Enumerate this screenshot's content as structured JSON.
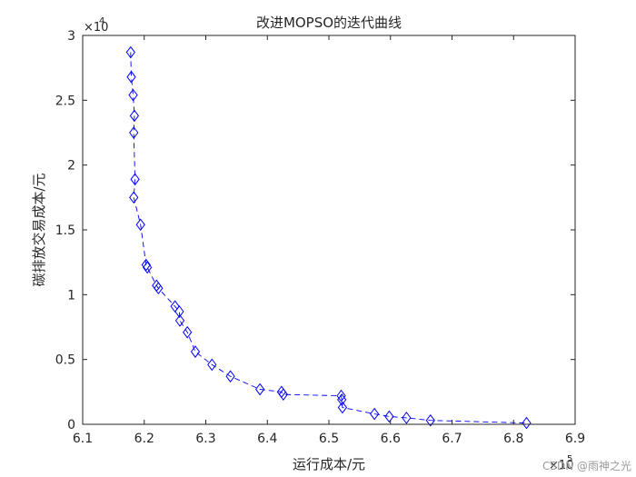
{
  "chart_data": {
    "type": "line",
    "title": "改进MOPSO的迭代曲线",
    "xlabel": "运行成本/元",
    "ylabel": "碳排放交易成本/元",
    "x_exponent_label": "×10",
    "x_exponent_power": "5",
    "y_exponent_label": "×10",
    "y_exponent_power": "4",
    "xlim": [
      6.1,
      6.9
    ],
    "ylim": [
      0,
      3
    ],
    "x_ticks": [
      "6.1",
      "6.2",
      "6.3",
      "6.4",
      "6.5",
      "6.6",
      "6.7",
      "6.8",
      "6.9"
    ],
    "y_ticks": [
      "0",
      "0.5",
      "1",
      "1.5",
      "2",
      "2.5",
      "3"
    ],
    "grid": false,
    "line_style": "dashed",
    "marker": "diamond",
    "color": "#0000ff",
    "series": [
      {
        "x": [
          6.178,
          6.179,
          6.182,
          6.184,
          6.183,
          6.185,
          6.183,
          6.194,
          6.203,
          6.205,
          6.22,
          6.223,
          6.25,
          6.257,
          6.258,
          6.27,
          6.283,
          6.31,
          6.34,
          6.388,
          6.423,
          6.426,
          6.52,
          6.521,
          6.522,
          6.574,
          6.598,
          6.626,
          6.665,
          6.821
        ],
        "y": [
          2.87,
          2.68,
          2.54,
          2.38,
          2.25,
          1.89,
          1.75,
          1.54,
          1.23,
          1.21,
          1.07,
          1.05,
          0.91,
          0.87,
          0.8,
          0.71,
          0.56,
          0.46,
          0.37,
          0.27,
          0.25,
          0.23,
          0.22,
          0.19,
          0.13,
          0.08,
          0.06,
          0.05,
          0.03,
          0.01
        ]
      }
    ]
  },
  "watermark": "CSDN @雨神之光"
}
